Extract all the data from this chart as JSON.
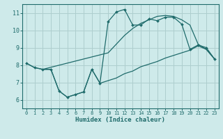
{
  "xlabel": "Humidex (Indice chaleur)",
  "background_color": "#ceeaea",
  "grid_color": "#aecece",
  "line_color": "#1f6b6b",
  "xlim": [
    -0.5,
    23.5
  ],
  "ylim": [
    5.5,
    11.5
  ],
  "yticks": [
    6,
    7,
    8,
    9,
    10,
    11
  ],
  "xticks": [
    0,
    1,
    2,
    3,
    4,
    5,
    6,
    7,
    8,
    9,
    10,
    11,
    12,
    13,
    14,
    15,
    16,
    17,
    18,
    19,
    20,
    21,
    22,
    23
  ],
  "line1_x": [
    0,
    1,
    2,
    10,
    11,
    12,
    13,
    14,
    15,
    16,
    17,
    18,
    19,
    20,
    21,
    22,
    23
  ],
  "line1_y": [
    8.1,
    7.85,
    7.75,
    8.7,
    9.2,
    9.7,
    10.1,
    10.4,
    10.6,
    10.8,
    10.85,
    10.8,
    10.6,
    10.3,
    9.2,
    8.9,
    8.35
  ],
  "line2_x": [
    0,
    1,
    2,
    3,
    4,
    5,
    6,
    7,
    8,
    9,
    10,
    11,
    12,
    13,
    14,
    15,
    16,
    17,
    18,
    19,
    20,
    21,
    22,
    23
  ],
  "line2_y": [
    8.1,
    7.85,
    7.75,
    7.75,
    6.5,
    6.15,
    6.3,
    6.45,
    7.75,
    6.95,
    10.5,
    11.05,
    11.2,
    10.3,
    10.3,
    10.65,
    10.55,
    10.75,
    10.75,
    10.35,
    8.9,
    9.15,
    9.0,
    8.35
  ],
  "line3_x": [
    2,
    3,
    4,
    5,
    6,
    7,
    8,
    9,
    10,
    11,
    12,
    13,
    14,
    15,
    16,
    17,
    18,
    19,
    20,
    21,
    22,
    23
  ],
  "line3_y": [
    7.75,
    7.75,
    6.5,
    6.15,
    6.3,
    6.45,
    7.75,
    6.95,
    7.1,
    7.25,
    7.5,
    7.65,
    7.9,
    8.05,
    8.2,
    8.4,
    8.55,
    8.7,
    8.85,
    9.1,
    8.9,
    8.35
  ]
}
